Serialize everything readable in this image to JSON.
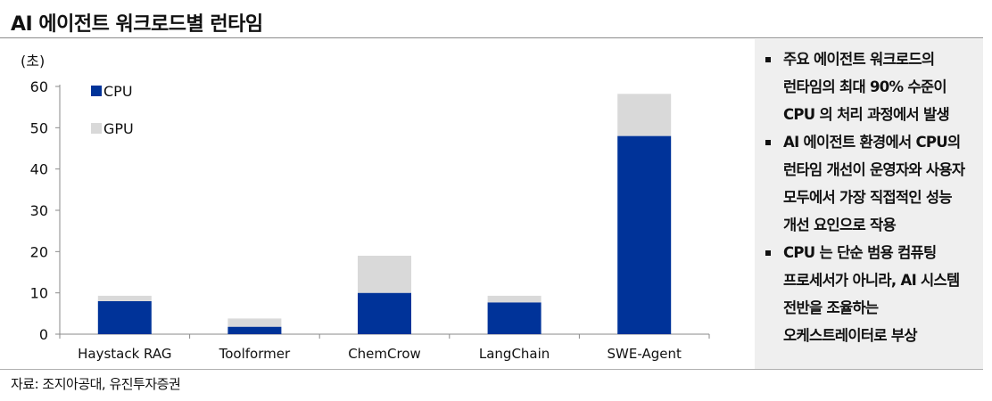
{
  "header": {
    "title": "AI 에이전트 워크로드별 런타임"
  },
  "chart_data": {
    "type": "bar",
    "stacked": true,
    "unit_label": "(초)",
    "categories": [
      "Haystack RAG",
      "Toolformer",
      "ChemCrow",
      "LangChain",
      "SWE-Agent"
    ],
    "series": [
      {
        "name": "CPU",
        "color": "#003399",
        "values": [
          8,
          1.8,
          10,
          7.7,
          48
        ]
      },
      {
        "name": "GPU",
        "color": "#d9d9d9",
        "values": [
          1.3,
          2,
          9,
          1.6,
          10.2
        ]
      }
    ],
    "ylim": [
      0,
      60
    ],
    "yticks": [
      0,
      10,
      20,
      30,
      40,
      50,
      60
    ],
    "legend_position": "top-left",
    "grid": false
  },
  "notes": {
    "items": [
      "주요 에이전트 워크로드의 런타임의 최대 90% 수준이 CPU 의 처리 과정에서 발생",
      "AI 에이전트 환경에서 CPU의 런타임 개선이 운영자와 사용자 모두에서 가장 직접적인 성능 개선 요인으로 작용",
      "CPU 는 단순 범용 컴퓨팅 프로세서가 아니라, AI 시스템 전반을 조율하는 오케스트레이터로 부상"
    ]
  },
  "footer": {
    "source": "자료: 조지아공대, 유진투자증권"
  }
}
